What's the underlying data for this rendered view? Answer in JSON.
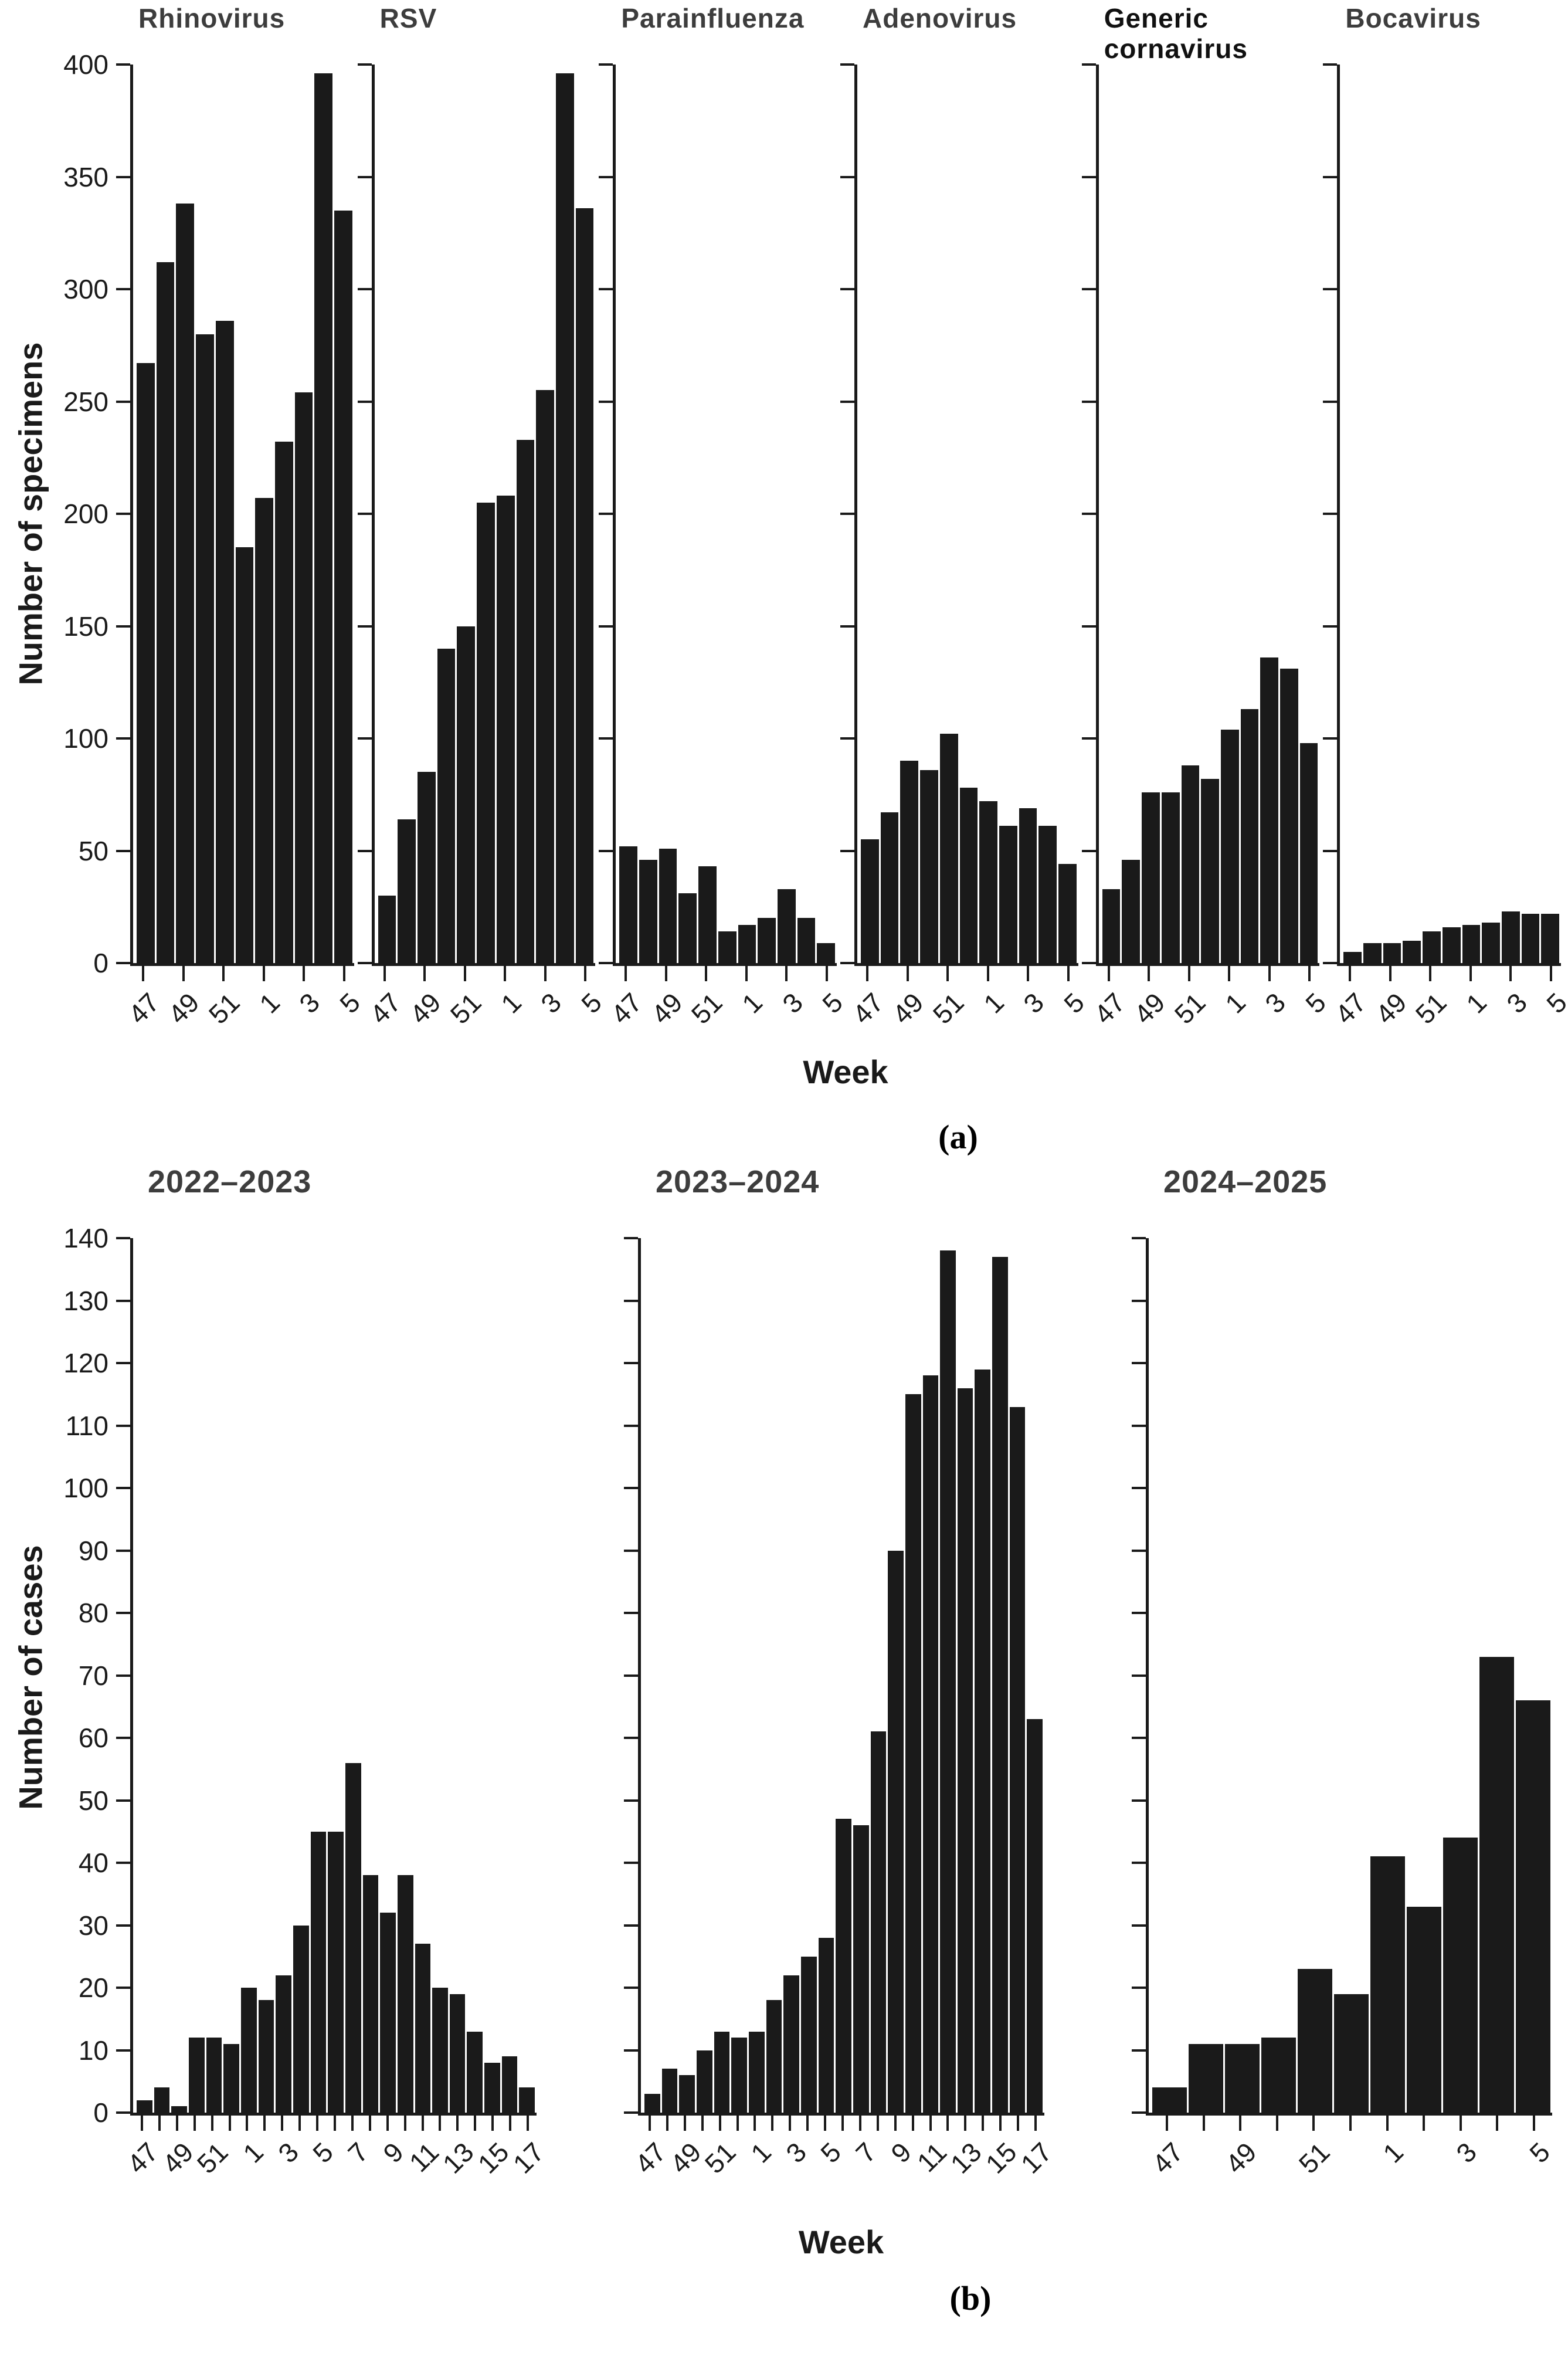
{
  "chart_data": [
    {
      "id": "a",
      "type": "bar",
      "ylabel": "Number of specimens",
      "xlabel": "Week",
      "caption": "(a)",
      "ylim": [
        0,
        400
      ],
      "ytick_step": 50,
      "grid": false,
      "legend": "none",
      "bar_color": "#1a1a1a",
      "categories": [
        "47",
        "48",
        "49",
        "50",
        "51",
        "52",
        "1",
        "2",
        "3",
        "4",
        "5"
      ],
      "xtick_labels": [
        "47",
        "49",
        "51",
        "1",
        "3",
        "5"
      ],
      "tick_every": 2,
      "label_every": 2,
      "series": [
        {
          "name": "Rhinovirus",
          "title_color": "#3d3d3d",
          "values": [
            267,
            312,
            338,
            280,
            286,
            185,
            207,
            232,
            254,
            396,
            335
          ]
        },
        {
          "name": "RSV",
          "title_color": "#3d3d3d",
          "values": [
            30,
            64,
            85,
            140,
            150,
            205,
            208,
            233,
            255,
            396,
            336
          ]
        },
        {
          "name": "Parainfluenza",
          "title_color": "#3d3d3d",
          "values": [
            52,
            46,
            51,
            31,
            43,
            14,
            17,
            20,
            33,
            20,
            9
          ]
        },
        {
          "name": "Adenovirus",
          "title_color": "#3d3d3d",
          "values": [
            55,
            67,
            90,
            86,
            102,
            78,
            72,
            61,
            69,
            61,
            44
          ]
        },
        {
          "name": "Generic cornavirus",
          "title_color": "#111111",
          "values": [
            33,
            46,
            76,
            76,
            88,
            82,
            104,
            113,
            136,
            131,
            98
          ]
        },
        {
          "name": "Bocavirus",
          "title_color": "#3d3d3d",
          "values": [
            5,
            9,
            9,
            10,
            14,
            16,
            17,
            18,
            23,
            22,
            22
          ]
        }
      ]
    },
    {
      "id": "b",
      "type": "bar",
      "ylabel": "Number of cases",
      "xlabel": "Week",
      "caption": "(b)",
      "ylim": [
        0,
        140
      ],
      "ytick_step": 10,
      "grid": false,
      "legend": "none",
      "bar_color": "#1a1a1a",
      "tick_every": 1,
      "label_every": 2,
      "series": [
        {
          "name": "2022–2023",
          "title_color": "#3d3d3d",
          "categories": [
            "47",
            "48",
            "49",
            "50",
            "51",
            "52",
            "1",
            "2",
            "3",
            "4",
            "5",
            "6",
            "7",
            "8",
            "9",
            "10",
            "11",
            "12",
            "13",
            "14",
            "15",
            "16",
            "17"
          ],
          "xtick_labels": [
            "47",
            "49",
            "51",
            "1",
            "3",
            "5",
            "7",
            "9",
            "11",
            "13",
            "15",
            "17"
          ],
          "values": [
            2,
            4,
            1,
            12,
            12,
            11,
            20,
            18,
            22,
            30,
            45,
            45,
            56,
            38,
            32,
            38,
            27,
            20,
            19,
            13,
            8,
            9,
            4
          ]
        },
        {
          "name": "2023–2024",
          "title_color": "#3d3d3d",
          "categories": [
            "47",
            "48",
            "49",
            "50",
            "51",
            "52",
            "1",
            "2",
            "3",
            "4",
            "5",
            "6",
            "7",
            "8",
            "9",
            "10",
            "11",
            "12",
            "13",
            "14",
            "15",
            "16",
            "17"
          ],
          "xtick_labels": [
            "47",
            "49",
            "51",
            "1",
            "3",
            "5",
            "7",
            "9",
            "11",
            "13",
            "15",
            "17"
          ],
          "values": [
            3,
            7,
            6,
            10,
            13,
            12,
            13,
            18,
            22,
            25,
            28,
            47,
            46,
            61,
            90,
            115,
            118,
            138,
            116,
            119,
            137,
            113,
            63
          ]
        },
        {
          "name": "2024–2025",
          "title_color": "#3d3d3d",
          "categories": [
            "47",
            "48",
            "49",
            "50",
            "51",
            "52",
            "1",
            "2",
            "3",
            "4",
            "5"
          ],
          "xtick_labels": [
            "47",
            "49",
            "51",
            "1",
            "3",
            "5"
          ],
          "values": [
            4,
            11,
            11,
            12,
            23,
            19,
            41,
            33,
            44,
            73,
            66
          ]
        }
      ]
    }
  ]
}
